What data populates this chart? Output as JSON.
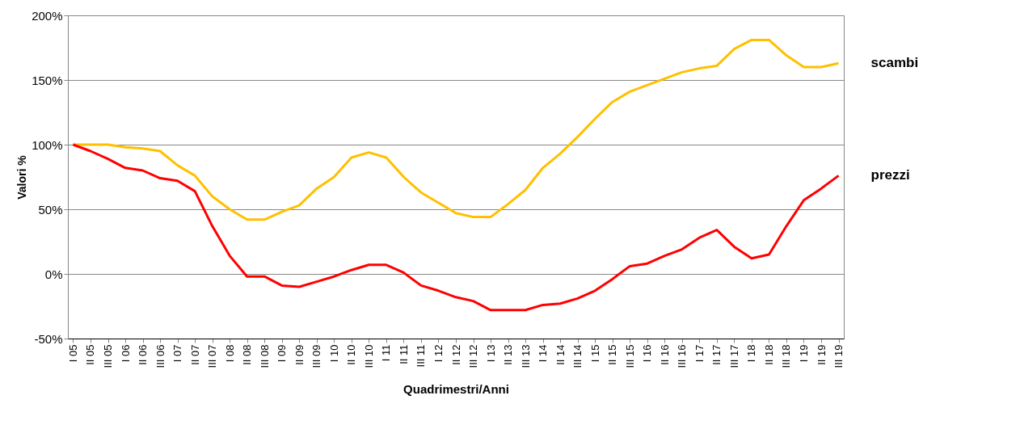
{
  "chart_data": {
    "type": "line",
    "xlabel": "Quadrimestri/Anni",
    "ylabel": "Valori %",
    "categories": [
      "I 05",
      "II 05",
      "III 05",
      "I 06",
      "II 06",
      "III 06",
      "I 07",
      "II 07",
      "III 07",
      "I 08",
      "II 08",
      "III 08",
      "I 09",
      "II 09",
      "III 09",
      "I 10",
      "II 10",
      "III 10",
      "I 11",
      "II 11",
      "III 11",
      "I 12",
      "II 12",
      "III 12",
      "I 13",
      "II 13",
      "III 13",
      "I 14",
      "II 14",
      "III 14",
      "I 15",
      "II 15",
      "III 15",
      "I 16",
      "II 16",
      "III 16",
      "I 17",
      "II 17",
      "III 17",
      "I 18",
      "II 18",
      "III 18",
      "I 19",
      "II 19",
      "III 19"
    ],
    "series": [
      {
        "name": "scambi",
        "color": "#ffc000",
        "values": [
          100,
          100,
          100,
          98,
          97,
          95,
          84,
          76,
          60,
          50,
          42,
          42,
          48,
          53,
          66,
          75,
          90,
          94,
          90,
          75,
          63,
          55,
          47,
          44,
          44,
          54,
          65,
          82,
          93,
          106,
          120,
          133,
          141,
          146,
          151,
          156,
          159,
          161,
          174,
          181,
          181,
          169,
          160,
          160,
          163
        ]
      },
      {
        "name": "prezzi",
        "color": "#ff0000",
        "values": [
          100,
          95,
          89,
          82,
          80,
          74,
          72,
          64,
          37,
          14,
          -2,
          -2,
          -9,
          -10,
          -6,
          -2,
          3,
          7,
          7,
          1,
          -9,
          -13,
          -18,
          -21,
          -28,
          -28,
          -28,
          -24,
          -23,
          -19,
          -13,
          -4,
          6,
          8,
          14,
          19,
          28,
          34,
          21,
          12,
          15,
          37,
          57,
          66,
          76
        ]
      }
    ],
    "ylim": [
      -50,
      200
    ],
    "yticks": [
      {
        "value": -50,
        "label": "-50%"
      },
      {
        "value": 0,
        "label": "0%"
      },
      {
        "value": 50,
        "label": "50%"
      },
      {
        "value": 100,
        "label": "100%"
      },
      {
        "value": 150,
        "label": "150%"
      },
      {
        "value": 200,
        "label": "200%"
      }
    ],
    "grid": "y",
    "legend": false,
    "marker": "none",
    "line_style": "solid"
  }
}
